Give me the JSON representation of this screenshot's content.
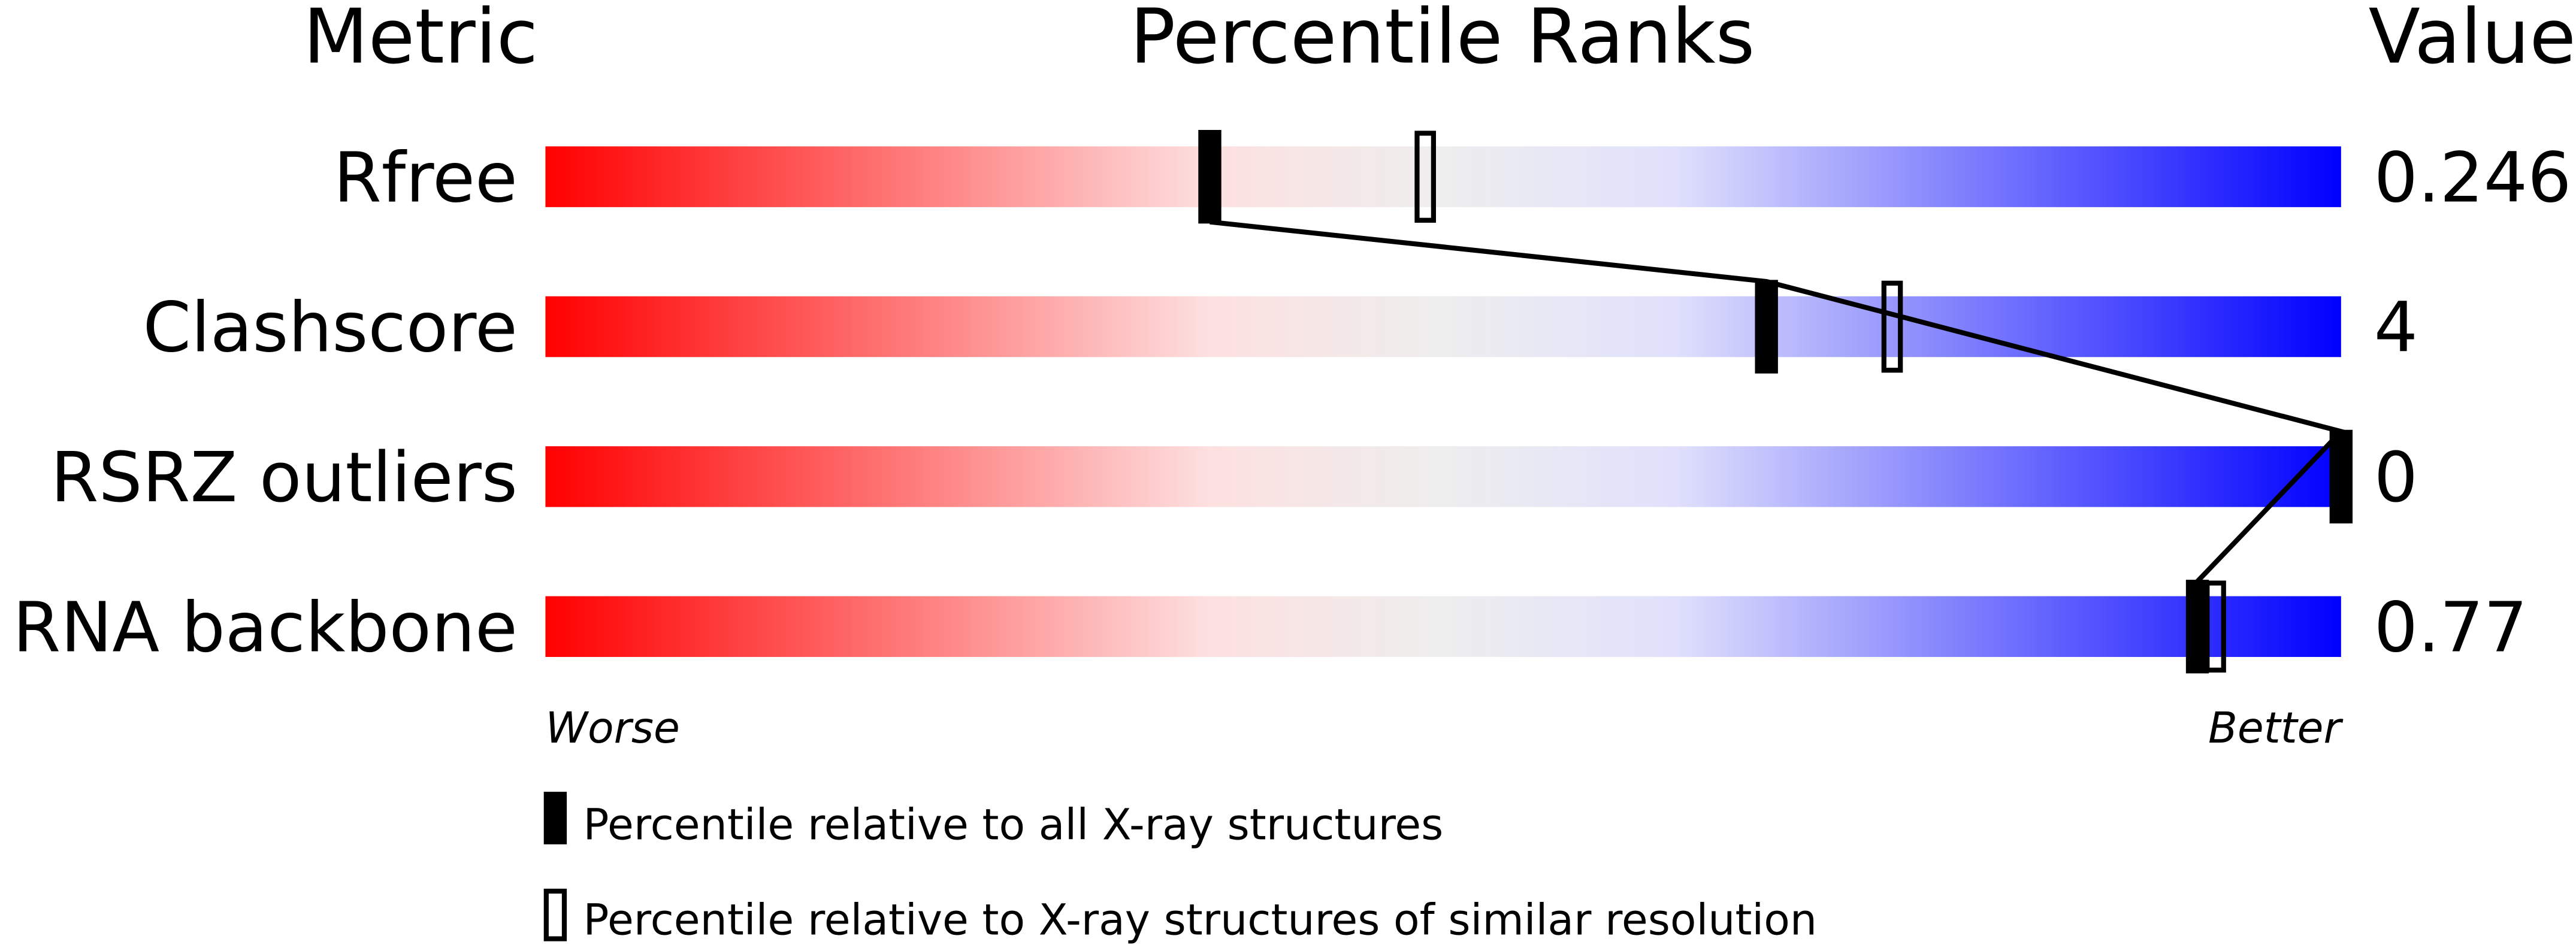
{
  "chart_data": {
    "type": "percentile-bar",
    "headers": {
      "metric": "Metric",
      "ranks": "Percentile Ranks",
      "value": "Value"
    },
    "xlim": [
      0,
      100
    ],
    "metrics": [
      {
        "name": "Rfree",
        "value": "0.246",
        "percentile_all": 37,
        "percentile_similar": 49
      },
      {
        "name": "Clashscore",
        "value": "4",
        "percentile_all": 68,
        "percentile_similar": 75
      },
      {
        "name": "RSRZ outliers",
        "value": "0",
        "percentile_all": 100,
        "percentile_similar": null
      },
      {
        "name": "RNA backbone",
        "value": "0.77",
        "percentile_all": 92,
        "percentile_similar": 93
      }
    ],
    "axis_labels": {
      "left": "Worse",
      "right": "Better"
    },
    "legend": {
      "all": "Percentile relative to all X-ray structures",
      "similar": "Percentile relative to X-ray structures of similar resolution"
    },
    "colors": {
      "worse": "#ff0000",
      "middle": "#eeeeee",
      "better": "#0000ff",
      "marker": "#000000"
    }
  }
}
